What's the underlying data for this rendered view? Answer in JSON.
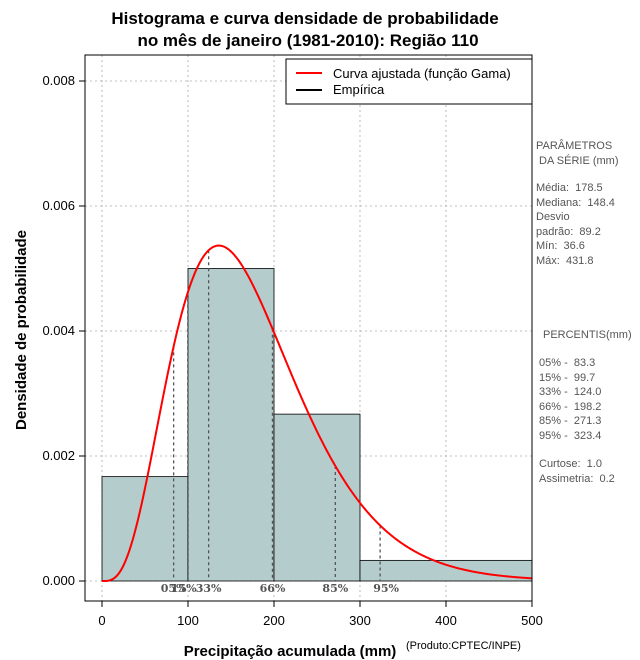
{
  "chart_data": {
    "type": "bar",
    "title_line1": "Histograma e curva densidade de probabilidade",
    "title_line2": "no mês de janeiro (1981-2010): Região 110",
    "xlabel": "Precipitação acumulada (mm)",
    "ylabel": "Densidade de probabilidade",
    "xlim": [
      0,
      500
    ],
    "ylim": [
      0,
      0.008
    ],
    "x_ticks": [
      0,
      100,
      200,
      300,
      400,
      500
    ],
    "y_ticks": [
      0.0,
      0.002,
      0.004,
      0.006,
      0.008
    ],
    "y_tick_labels": [
      "0.000",
      "0.002",
      "0.004",
      "0.006",
      "0.008"
    ],
    "grid": true,
    "bins": [
      {
        "start": 0,
        "end": 100,
        "density": 0.00167
      },
      {
        "start": 100,
        "end": 200,
        "density": 0.005
      },
      {
        "start": 200,
        "end": 300,
        "density": 0.00267
      },
      {
        "start": 300,
        "end": 500,
        "density": 0.00033
      }
    ],
    "gamma_fit": {
      "shape": 4.5,
      "scale": 38.8
    },
    "percentile_lines": [
      {
        "label": "05%",
        "value": 83.3
      },
      {
        "label": "15%",
        "value": 99.7
      },
      {
        "label": "33%",
        "value": 124.0
      },
      {
        "label": "66%",
        "value": 198.2
      },
      {
        "label": "85%",
        "value": 271.3
      },
      {
        "label": "95%",
        "value": 323.4
      }
    ],
    "legend": [
      {
        "label": "Curva ajustada (função Gama)",
        "color": "#ff0000"
      },
      {
        "label": "Empírica",
        "color": "#000000"
      }
    ],
    "legend_position": "top-right",
    "bar_color": "#b4cccc",
    "curve_color": "#ff0000"
  },
  "side_panel": {
    "params_title": "PARÂMETROS\n DA SÉRIE (mm)",
    "params_body": "Média:  178.5\nMediana:  148.4\nDesvio\npadrão:  89.2\nMín:  36.6\nMáx:  431.8",
    "percentis_title": "PERCENTIS(mm)",
    "percentis_body": "05% -  83.3\n15% -  99.7\n33% -  124.0\n66% -  198.2\n85% -  271.3\n95% -  323.4",
    "stats_body": "Curtose:  1.0\nAssimetria:  0.2"
  },
  "product_note": "(Produto:CPTEC/INPE)"
}
